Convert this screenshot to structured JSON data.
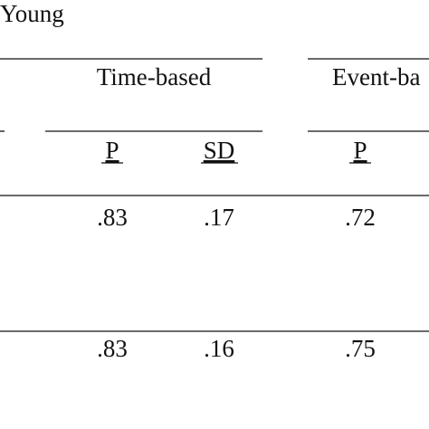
{
  "title": "Young",
  "header": {
    "groups": [
      "Time-based",
      "Event-ba"
    ],
    "columns": [
      "P",
      "SD",
      "P"
    ]
  },
  "table": {
    "rows": [
      [
        ".83",
        ".17",
        ".72"
      ],
      [
        ".83",
        ".16",
        ".75"
      ]
    ]
  }
}
